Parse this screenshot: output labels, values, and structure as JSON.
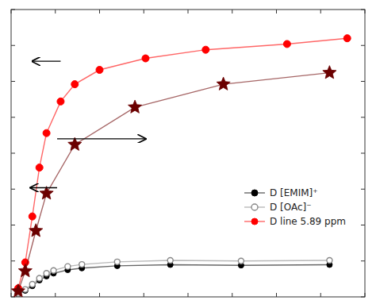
{
  "chart_data": {
    "type": "line",
    "xlim": [
      0.0,
      1.0
    ],
    "ylim": [
      0.0,
      1.0
    ],
    "xticks": [
      0,
      0.125,
      0.25,
      0.375,
      0.5,
      0.625,
      0.75,
      0.875,
      1.0
    ],
    "yticks": [
      0,
      0.125,
      0.25,
      0.375,
      0.5,
      0.625,
      0.75,
      0.875,
      1.0
    ],
    "tick_labels": false,
    "grid": false,
    "legend": "lower right",
    "series": [
      {
        "name": "D [EMIM]⁺",
        "color": "#000000",
        "marker": "circle",
        "x": [
          0.02,
          0.04,
          0.06,
          0.08,
          0.1,
          0.12,
          0.16,
          0.2,
          0.3,
          0.45,
          0.65,
          0.9
        ],
        "values": [
          0.01,
          0.022,
          0.038,
          0.058,
          0.072,
          0.082,
          0.094,
          0.1,
          0.108,
          0.112,
          0.11,
          0.112
        ]
      },
      {
        "name": "D [OAc]⁻",
        "color": "#888888",
        "marker": "open-circle",
        "x": [
          0.02,
          0.04,
          0.06,
          0.08,
          0.1,
          0.12,
          0.16,
          0.2,
          0.3,
          0.45,
          0.65,
          0.9
        ],
        "values": [
          0.012,
          0.026,
          0.044,
          0.065,
          0.082,
          0.092,
          0.106,
          0.113,
          0.122,
          0.127,
          0.125,
          0.127
        ]
      },
      {
        "name": "D line 5.89 ppm",
        "color": "#ff0000",
        "marker": "circle",
        "x": [
          0.02,
          0.04,
          0.06,
          0.08,
          0.1,
          0.14,
          0.18,
          0.25,
          0.38,
          0.55,
          0.78,
          0.95
        ],
        "values": [
          0.03,
          0.12,
          0.28,
          0.45,
          0.57,
          0.68,
          0.74,
          0.79,
          0.83,
          0.86,
          0.88,
          0.9
        ]
      },
      {
        "color": "#6b0000",
        "marker": "star",
        "x": [
          0.02,
          0.04,
          0.07,
          0.1,
          0.18,
          0.35,
          0.6,
          0.9
        ],
        "values": [
          0.02,
          0.09,
          0.23,
          0.36,
          0.53,
          0.66,
          0.74,
          0.78
        ]
      }
    ],
    "arrows": [
      {
        "x_start": 0.14,
        "x_end": 0.06,
        "y": 0.82
      },
      {
        "x_start": 0.13,
        "x_end": 0.38,
        "y": 0.55
      },
      {
        "x_start": 0.13,
        "x_end": 0.055,
        "y": 0.38
      }
    ]
  }
}
